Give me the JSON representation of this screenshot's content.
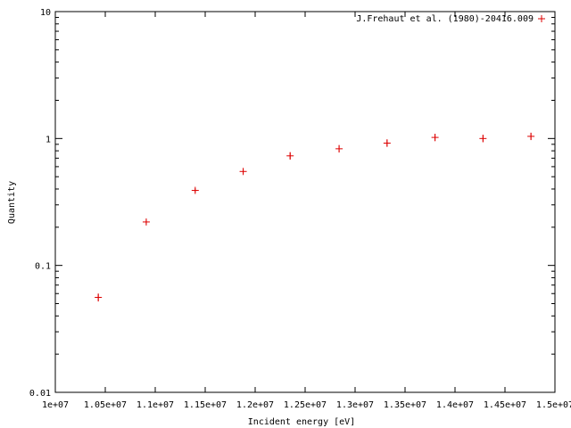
{
  "chart_data": {
    "type": "scatter",
    "title": "",
    "xlabel": "Incident energy [eV]",
    "ylabel": "Quantity",
    "xlim": [
      10000000,
      15000000
    ],
    "ylim": [
      0.01,
      10
    ],
    "xscale": "linear",
    "yscale": "log",
    "grid": false,
    "legend_position": "top-right",
    "x_ticks": [
      {
        "value": 10000000,
        "label": "1e+07"
      },
      {
        "value": 10500000,
        "label": "1.05e+07"
      },
      {
        "value": 11000000,
        "label": "1.1e+07"
      },
      {
        "value": 11500000,
        "label": "1.15e+07"
      },
      {
        "value": 12000000,
        "label": "1.2e+07"
      },
      {
        "value": 12500000,
        "label": "1.25e+07"
      },
      {
        "value": 13000000,
        "label": "1.3e+07"
      },
      {
        "value": 13500000,
        "label": "1.35e+07"
      },
      {
        "value": 14000000,
        "label": "1.4e+07"
      },
      {
        "value": 14500000,
        "label": "1.45e+07"
      },
      {
        "value": 15000000,
        "label": "1.5e+07"
      }
    ],
    "y_ticks": [
      {
        "value": 0.01,
        "label": "0.01"
      },
      {
        "value": 0.1,
        "label": "0.1"
      },
      {
        "value": 1,
        "label": "1"
      },
      {
        "value": 10,
        "label": "10"
      }
    ],
    "series": [
      {
        "name": "J.Frehaut et al. (1980)-20416.009",
        "color": "#dd0000",
        "marker": "plus",
        "points": [
          {
            "x": 10430000,
            "y": 0.056,
            "yerr_low": 0.052,
            "yerr_high": 0.06
          },
          {
            "x": 10910000,
            "y": 0.22,
            "yerr_low": 0.211,
            "yerr_high": 0.229
          },
          {
            "x": 11400000,
            "y": 0.39,
            "yerr_low": 0.374,
            "yerr_high": 0.406
          },
          {
            "x": 11880000,
            "y": 0.55,
            "yerr_low": 0.527,
            "yerr_high": 0.573
          },
          {
            "x": 12350000,
            "y": 0.73,
            "yerr_low": 0.683,
            "yerr_high": 0.78
          },
          {
            "x": 12840000,
            "y": 0.83,
            "yerr_low": 0.776,
            "yerr_high": 0.888
          },
          {
            "x": 13320000,
            "y": 0.92,
            "yerr_low": 0.86,
            "yerr_high": 0.985
          },
          {
            "x": 13800000,
            "y": 1.02,
            "yerr_low": 0.953,
            "yerr_high": 1.09
          },
          {
            "x": 14280000,
            "y": 1.0,
            "yerr_low": 0.935,
            "yerr_high": 1.07
          },
          {
            "x": 14760000,
            "y": 1.04,
            "yerr_low": 0.972,
            "yerr_high": 1.11
          }
        ]
      }
    ]
  }
}
